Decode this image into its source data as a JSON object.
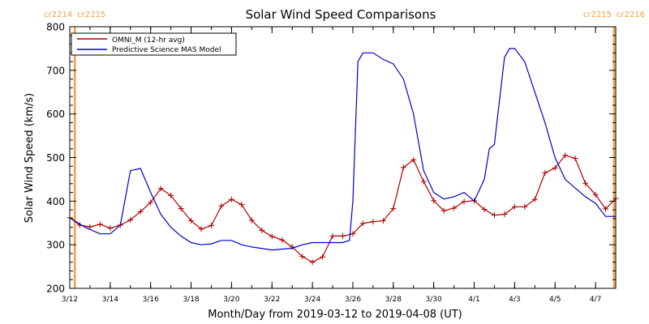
{
  "chart_data": {
    "type": "line",
    "title": "Solar Wind Speed Comparisons",
    "xlabel": "Month/Day from 2019-03-12 to 2019-04-08 (UT)",
    "ylabel": "Solar Wind Speed (km/s)",
    "xlim": [
      "2019-03-12",
      "2019-04-08"
    ],
    "ylim": [
      200,
      800
    ],
    "x_tick_labels": [
      "3/12",
      "3/14",
      "3/16",
      "3/18",
      "3/20",
      "3/22",
      "3/24",
      "3/26",
      "3/28",
      "3/30",
      "4/1",
      "4/3",
      "4/5",
      "4/7"
    ],
    "x_tick_dates": [
      "2019-03-12",
      "2019-03-14",
      "2019-03-16",
      "2019-03-18",
      "2019-03-20",
      "2019-03-22",
      "2019-03-24",
      "2019-03-26",
      "2019-03-28",
      "2019-03-30",
      "2019-04-01",
      "2019-04-03",
      "2019-04-05",
      "2019-04-07"
    ],
    "y_ticks": [
      200,
      300,
      400,
      500,
      600,
      700,
      800
    ],
    "grid": false,
    "legend_position": "top-left",
    "carrington_markers": [
      {
        "date": "2019-03-12 06:00",
        "label_left": "cr2214",
        "label_right": "cr2215",
        "color": "#f4a040"
      },
      {
        "date": "2019-04-07 22:00",
        "label_left": "cr2215",
        "label_right": "cr2216",
        "color": "#f4a040"
      }
    ],
    "series": [
      {
        "name": "OMNI_M (12-hr avg)",
        "color": "#b00000",
        "marker": "+",
        "x": [
          "2019-03-12 00:00",
          "2019-03-12 12:00",
          "2019-03-13 00:00",
          "2019-03-13 12:00",
          "2019-03-14 00:00",
          "2019-03-14 12:00",
          "2019-03-15 00:00",
          "2019-03-15 12:00",
          "2019-03-16 00:00",
          "2019-03-16 12:00",
          "2019-03-17 00:00",
          "2019-03-17 12:00",
          "2019-03-18 00:00",
          "2019-03-18 12:00",
          "2019-03-19 00:00",
          "2019-03-19 12:00",
          "2019-03-20 00:00",
          "2019-03-20 12:00",
          "2019-03-21 00:00",
          "2019-03-21 12:00",
          "2019-03-22 00:00",
          "2019-03-22 12:00",
          "2019-03-23 00:00",
          "2019-03-23 12:00",
          "2019-03-24 00:00",
          "2019-03-24 12:00",
          "2019-03-25 00:00",
          "2019-03-25 12:00",
          "2019-03-26 00:00",
          "2019-03-26 12:00",
          "2019-03-27 00:00",
          "2019-03-27 12:00",
          "2019-03-28 00:00",
          "2019-03-28 12:00",
          "2019-03-29 00:00",
          "2019-03-29 12:00",
          "2019-03-30 00:00",
          "2019-03-30 12:00",
          "2019-03-31 00:00",
          "2019-03-31 12:00",
          "2019-04-01 00:00",
          "2019-04-01 12:00",
          "2019-04-02 00:00",
          "2019-04-02 12:00",
          "2019-04-03 00:00",
          "2019-04-03 12:00",
          "2019-04-04 00:00",
          "2019-04-04 12:00",
          "2019-04-05 00:00",
          "2019-04-05 12:00",
          "2019-04-06 00:00",
          "2019-04-06 12:00",
          "2019-04-07 00:00",
          "2019-04-07 12:00",
          "2019-04-08 00:00"
        ],
        "values": [
          362,
          345,
          341,
          347,
          338,
          345,
          357,
          376,
          397,
          429,
          413,
          383,
          355,
          336,
          344,
          389,
          404,
          392,
          356,
          333,
          319,
          311,
          295,
          273,
          260,
          272,
          320,
          320,
          325,
          349,
          353,
          355,
          383,
          477,
          495,
          445,
          401,
          378,
          384,
          399,
          401,
          381,
          368,
          370,
          387,
          387,
          404,
          465,
          476,
          505,
          498,
          441,
          415,
          382,
          406
        ]
      },
      {
        "name": "Predictive Science MAS Model",
        "color": "#0000cc",
        "x": [
          "2019-03-12 00:00",
          "2019-03-12 18:00",
          "2019-03-13 12:00",
          "2019-03-14 00:00",
          "2019-03-14 12:00",
          "2019-03-15 00:00",
          "2019-03-15 12:00",
          "2019-03-16 00:00",
          "2019-03-16 12:00",
          "2019-03-17 00:00",
          "2019-03-17 12:00",
          "2019-03-18 00:00",
          "2019-03-18 12:00",
          "2019-03-19 00:00",
          "2019-03-19 12:00",
          "2019-03-20 00:00",
          "2019-03-20 12:00",
          "2019-03-21 00:00",
          "2019-03-22 00:00",
          "2019-03-23 00:00",
          "2019-03-23 12:00",
          "2019-03-24 00:00",
          "2019-03-24 12:00",
          "2019-03-25 00:00",
          "2019-03-25 12:00",
          "2019-03-25 20:00",
          "2019-03-26 00:00",
          "2019-03-26 06:00",
          "2019-03-26 12:00",
          "2019-03-27 00:00",
          "2019-03-27 12:00",
          "2019-03-28 00:00",
          "2019-03-28 12:00",
          "2019-03-29 00:00",
          "2019-03-29 12:00",
          "2019-03-30 00:00",
          "2019-03-30 12:00",
          "2019-03-31 00:00",
          "2019-03-31 12:00",
          "2019-04-01 00:00",
          "2019-04-01 12:00",
          "2019-04-01 18:00",
          "2019-04-02 00:00",
          "2019-04-02 12:00",
          "2019-04-02 18:00",
          "2019-04-03 00:00",
          "2019-04-03 12:00",
          "2019-04-04 00:00",
          "2019-04-04 12:00",
          "2019-04-05 00:00",
          "2019-04-05 12:00",
          "2019-04-06 00:00",
          "2019-04-06 12:00",
          "2019-04-07 00:00",
          "2019-04-07 12:00",
          "2019-04-08 00:00"
        ],
        "values": [
          362,
          340,
          325,
          325,
          345,
          470,
          475,
          420,
          370,
          340,
          320,
          305,
          300,
          302,
          310,
          310,
          300,
          295,
          288,
          292,
          300,
          305,
          305,
          305,
          305,
          310,
          400,
          720,
          740,
          740,
          725,
          715,
          680,
          600,
          470,
          420,
          405,
          410,
          420,
          400,
          450,
          520,
          530,
          730,
          750,
          750,
          720,
          650,
          580,
          500,
          450,
          430,
          410,
          395,
          365,
          365
        ]
      }
    ]
  }
}
